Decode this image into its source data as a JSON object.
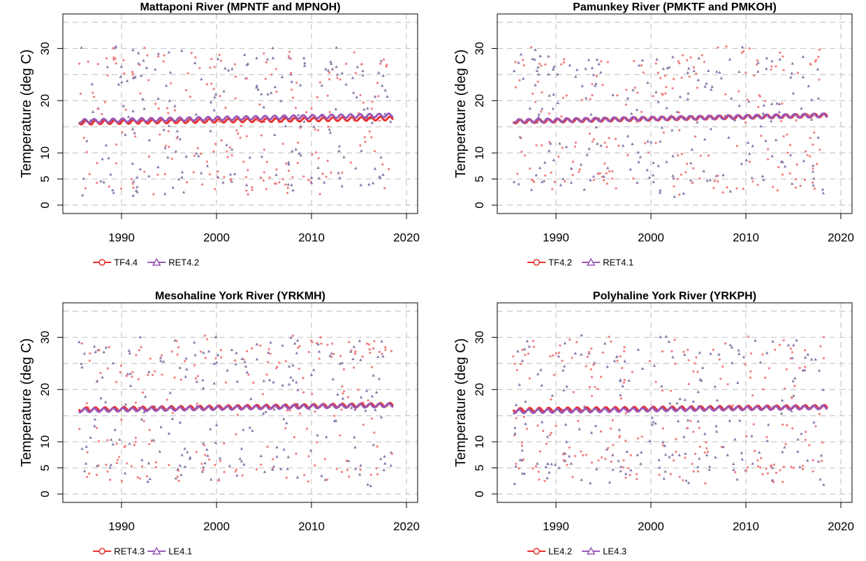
{
  "colors": {
    "series_a": "#e8312f",
    "series_b": "#9b59b6",
    "grid": "#c8c8c8",
    "point_a": "#f08080",
    "point_b": "#8878a8"
  },
  "chart_data": [
    {
      "type": "scatter",
      "title": "Mattaponi River (MPNTF and MPNOH)",
      "ylabel": "Temperature (deg C)",
      "xlim": [
        1985,
        2020
      ],
      "ylim": [
        0,
        35
      ],
      "xticks": [
        "1990",
        "2000",
        "2010",
        "2020"
      ],
      "yticks": [
        "0",
        "5",
        "10",
        "20",
        "30"
      ],
      "series": [
        {
          "name": "TF4.4",
          "marker": "circle",
          "trend": [
            15.8,
            16.6
          ]
        },
        {
          "name": "RET4.2",
          "marker": "triangle",
          "trend": [
            16.1,
            17.2
          ]
        }
      ]
    },
    {
      "type": "scatter",
      "title": "Pamunkey River (PMKTF and PMKOH)",
      "ylabel": "Temperature (deg C)",
      "xlim": [
        1985,
        2020
      ],
      "ylim": [
        0,
        35
      ],
      "xticks": [
        "1990",
        "2000",
        "2010",
        "2020"
      ],
      "yticks": [
        "0",
        "5",
        "10",
        "20",
        "30"
      ],
      "series": [
        {
          "name": "TF4.2",
          "marker": "circle",
          "trend": [
            16.0,
            17.2
          ]
        },
        {
          "name": "RET4.1",
          "marker": "triangle",
          "trend": [
            16.1,
            17.2
          ]
        }
      ]
    },
    {
      "type": "scatter",
      "title": "Mesohaline York River (YRKMH)",
      "ylabel": "Temperature (deg C)",
      "xlim": [
        1985,
        2020
      ],
      "ylim": [
        0,
        35
      ],
      "xticks": [
        "1990",
        "2000",
        "2010",
        "2020"
      ],
      "yticks": [
        "0",
        "5",
        "10",
        "20",
        "30"
      ],
      "series": [
        {
          "name": "RET4.3",
          "marker": "circle",
          "trend": [
            16.2,
            17.1
          ]
        },
        {
          "name": "LE4.1",
          "marker": "triangle",
          "trend": [
            16.0,
            17.0
          ]
        }
      ]
    },
    {
      "type": "scatter",
      "title": "Polyhaline York River (YRKPH)",
      "ylabel": "Temperature (deg C)",
      "xlim": [
        1985,
        2020
      ],
      "ylim": [
        0,
        35
      ],
      "xticks": [
        "1990",
        "2000",
        "2010",
        "2020"
      ],
      "yticks": [
        "0",
        "5",
        "10",
        "20",
        "30"
      ],
      "series": [
        {
          "name": "LE4.2",
          "marker": "circle",
          "trend": [
            16.1,
            16.7
          ]
        },
        {
          "name": "LE4.3",
          "marker": "triangle",
          "trend": [
            15.8,
            16.6
          ]
        }
      ]
    }
  ]
}
